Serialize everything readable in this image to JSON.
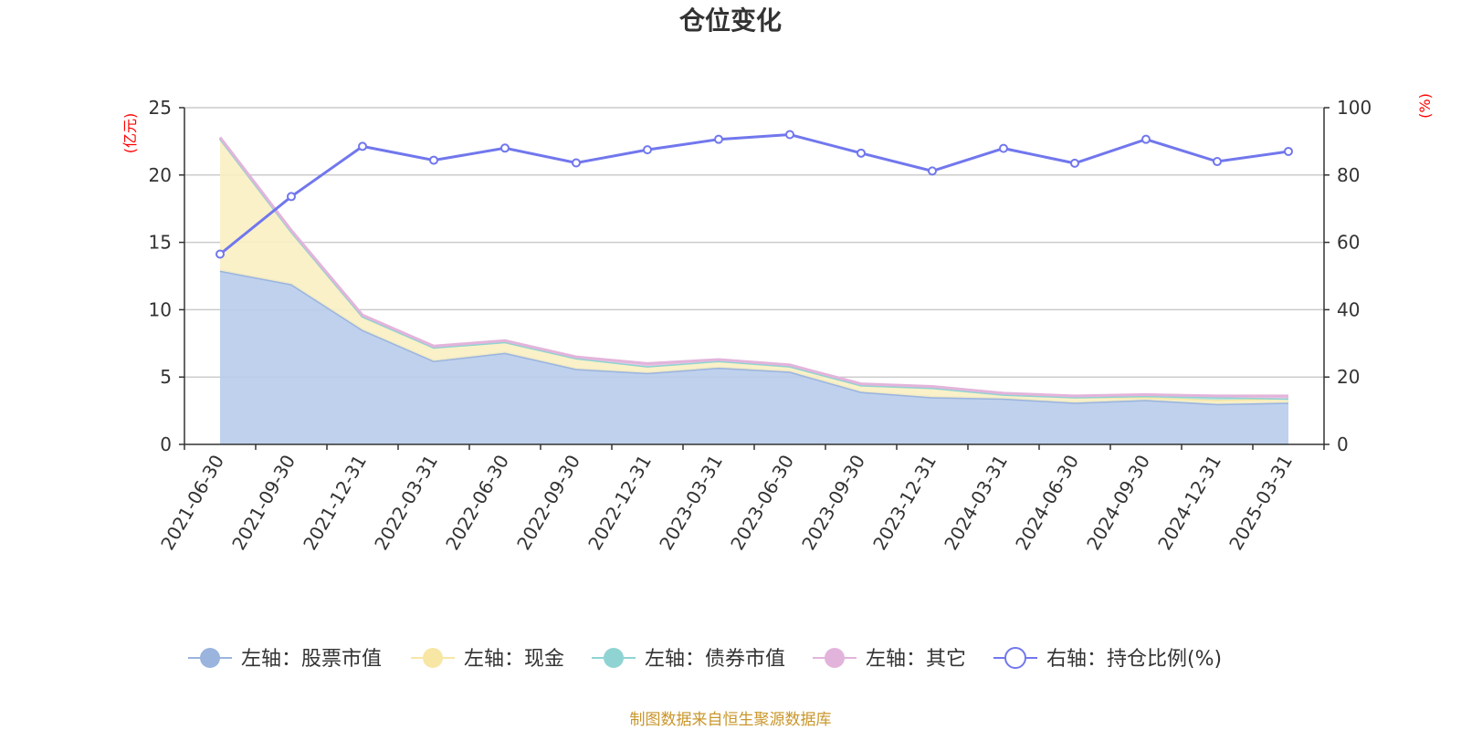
{
  "chart_data": {
    "type": "area",
    "title": "仓位变化",
    "left_axis": {
      "unit": "(亿元)",
      "range": [
        0,
        25
      ],
      "ticks": [
        0,
        5,
        10,
        15,
        20,
        25
      ]
    },
    "right_axis": {
      "unit": "(%)",
      "range": [
        0,
        100
      ],
      "ticks": [
        0,
        20,
        40,
        60,
        80,
        100
      ]
    },
    "categories": [
      "2021-06-30",
      "2021-09-30",
      "2021-12-31",
      "2022-03-31",
      "2022-06-30",
      "2022-09-30",
      "2022-12-31",
      "2023-03-31",
      "2023-06-30",
      "2023-09-30",
      "2023-12-31",
      "2024-03-31",
      "2024-06-30",
      "2024-09-30",
      "2024-12-31",
      "2025-03-31"
    ],
    "series": [
      {
        "name": "左轴：股票市值",
        "axis": "left",
        "stack": true,
        "color": "#9ab4de",
        "fill": "#b8cceb",
        "values": [
          12.9,
          11.9,
          8.5,
          6.2,
          6.8,
          5.6,
          5.3,
          5.7,
          5.4,
          3.9,
          3.5,
          3.4,
          3.1,
          3.3,
          3.0,
          3.1
        ]
      },
      {
        "name": "左轴：现金",
        "axis": "left",
        "stack": true,
        "color": "#f8e6a4",
        "fill": "#faefc3",
        "values": [
          9.8,
          3.9,
          1.0,
          1.0,
          0.8,
          0.8,
          0.5,
          0.5,
          0.4,
          0.5,
          0.7,
          0.3,
          0.4,
          0.2,
          0.3,
          0.3
        ]
      },
      {
        "name": "左轴：债券市值",
        "axis": "left",
        "stack": true,
        "color": "#8fd3d3",
        "fill": "#b5e3e3",
        "values": [
          0,
          0,
          0,
          0,
          0,
          0,
          0,
          0,
          0,
          0,
          0,
          0,
          0,
          0.1,
          0.2,
          0
        ]
      },
      {
        "name": "左轴：其它",
        "axis": "left",
        "stack": true,
        "color": "#e3b4db",
        "fill": "#eac6e4",
        "values": [
          0.1,
          0.1,
          0.1,
          0.1,
          0.1,
          0.1,
          0.2,
          0.1,
          0.1,
          0.1,
          0.1,
          0.1,
          0.1,
          0.1,
          0.1,
          0.2
        ]
      },
      {
        "name": "右轴：持仓比例(%)",
        "axis": "right",
        "type": "line",
        "color": "#7177ed",
        "values": [
          56.5,
          73.6,
          88.5,
          84.4,
          88.0,
          83.6,
          87.5,
          90.6,
          92.0,
          86.5,
          81.2,
          87.9,
          83.5,
          90.6,
          84.0,
          87.0
        ]
      }
    ],
    "legend_position": "bottom",
    "grid": true
  },
  "footer": {
    "source": "制图数据来自恒生聚源数据库"
  }
}
